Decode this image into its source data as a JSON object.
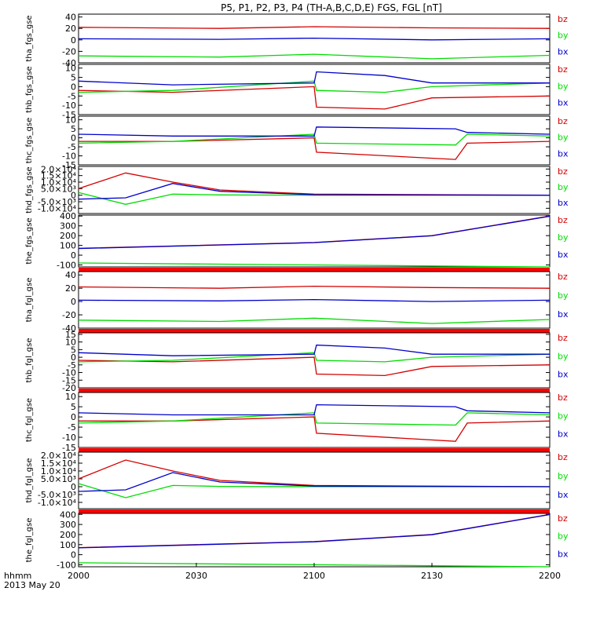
{
  "title": "P5, P1, P2, P3, P4 (TH-A,B,C,D,E) FGS, FGL [nT]",
  "footer": {
    "time_label": "hhmm",
    "date_label": "2013 May 20"
  },
  "colors": {
    "bz": "#d40000",
    "by": "#00dd00",
    "bx": "#0000cc",
    "separator": "#ff0000"
  },
  "chart_data": [
    {
      "type": "line",
      "ylabel": "tha_fgs_gse",
      "ylim": [
        -40,
        45
      ],
      "yticks": [
        "40",
        "20",
        "0",
        "-20",
        "-40"
      ],
      "series": [
        {
          "name": "bz",
          "x": [
            0,
            60,
            100,
            150,
            200
          ],
          "values": [
            22,
            20,
            23,
            21,
            20
          ]
        },
        {
          "name": "by",
          "x": [
            0,
            60,
            100,
            150,
            200
          ],
          "values": [
            -28,
            -30,
            -25,
            -33,
            -27
          ]
        },
        {
          "name": "bx",
          "x": [
            0,
            60,
            100,
            150,
            200
          ],
          "values": [
            2,
            1,
            3,
            0,
            2
          ]
        }
      ]
    },
    {
      "type": "line",
      "ylabel": "thb_fgs_gse",
      "ylim": [
        -15,
        12
      ],
      "yticks": [
        "10",
        "5",
        "0",
        "-5",
        "-10",
        "-15"
      ],
      "series": [
        {
          "name": "bz",
          "x": [
            0,
            40,
            100,
            101,
            130,
            150,
            200
          ],
          "values": [
            -2,
            -3,
            0,
            -11,
            -12,
            -6,
            -5
          ]
        },
        {
          "name": "by",
          "x": [
            0,
            40,
            100,
            101,
            130,
            150,
            200
          ],
          "values": [
            -3,
            -2,
            3,
            -2,
            -3,
            0,
            2
          ]
        },
        {
          "name": "bx",
          "x": [
            0,
            40,
            100,
            101,
            130,
            150,
            200
          ],
          "values": [
            3,
            1,
            2,
            8,
            6,
            2,
            2
          ]
        }
      ]
    },
    {
      "type": "line",
      "ylabel": "thc_fgs_gse",
      "ylim": [
        -15,
        12
      ],
      "yticks": [
        "10",
        "5",
        "0",
        "-5",
        "-10",
        "-15"
      ],
      "series": [
        {
          "name": "bz",
          "x": [
            0,
            40,
            100,
            101,
            160,
            165,
            200
          ],
          "values": [
            -2,
            -2,
            0,
            -8,
            -12,
            -3,
            -2
          ]
        },
        {
          "name": "by",
          "x": [
            0,
            40,
            100,
            101,
            160,
            165,
            200
          ],
          "values": [
            -3,
            -2,
            2,
            -3,
            -4,
            2,
            1
          ]
        },
        {
          "name": "bx",
          "x": [
            0,
            40,
            100,
            101,
            160,
            165,
            200
          ],
          "values": [
            2,
            1,
            1,
            6,
            5,
            3,
            2
          ]
        }
      ]
    },
    {
      "type": "line",
      "ylabel": "thd_fgs_gse",
      "ylim": [
        -14000,
        22000
      ],
      "yticks": [
        "2.0×10⁴",
        "1.5×10⁴",
        "1.0×10⁴",
        "5.0×10³",
        "0",
        "-5.0×10³",
        "-1.0×10⁴"
      ],
      "series": [
        {
          "name": "bz",
          "x": [
            0,
            20,
            40,
            60,
            100,
            200
          ],
          "values": [
            5000,
            17000,
            10000,
            4000,
            800,
            0
          ]
        },
        {
          "name": "by",
          "x": [
            0,
            20,
            40,
            60,
            100,
            200
          ],
          "values": [
            2000,
            -7000,
            800,
            200,
            0,
            0
          ]
        },
        {
          "name": "bx",
          "x": [
            0,
            20,
            40,
            60,
            100,
            200
          ],
          "values": [
            -3000,
            -2000,
            9000,
            3000,
            400,
            0
          ]
        }
      ]
    },
    {
      "type": "line",
      "ylabel": "the_fgs_gse",
      "ylim": [
        -120,
        410
      ],
      "yticks": [
        "400",
        "300",
        "200",
        "100",
        "0",
        "-100"
      ],
      "series": [
        {
          "name": "bz",
          "x": [
            0,
            100,
            150,
            200
          ],
          "values": [
            70,
            130,
            200,
            400
          ]
        },
        {
          "name": "by",
          "x": [
            0,
            100,
            150,
            200
          ],
          "values": [
            -80,
            -100,
            -110,
            -120
          ]
        },
        {
          "name": "bx",
          "x": [
            0,
            100,
            150,
            200
          ],
          "values": [
            68,
            128,
            198,
            398
          ]
        }
      ]
    },
    {
      "type": "line",
      "ylabel": "tha_fgl_gse",
      "ylim": [
        -40,
        45
      ],
      "yticks": [
        "40",
        "20",
        "0",
        "-20",
        "-40"
      ],
      "series": [
        {
          "name": "bz",
          "x": [
            0,
            60,
            100,
            150,
            200
          ],
          "values": [
            22,
            20,
            23,
            21,
            20
          ]
        },
        {
          "name": "by",
          "x": [
            0,
            60,
            100,
            150,
            200
          ],
          "values": [
            -28,
            -30,
            -25,
            -33,
            -27
          ]
        },
        {
          "name": "bx",
          "x": [
            0,
            60,
            100,
            150,
            200
          ],
          "values": [
            2,
            1,
            3,
            0,
            2
          ]
        }
      ]
    },
    {
      "type": "line",
      "ylabel": "thb_fgl_gse",
      "ylim": [
        -20,
        16
      ],
      "yticks": [
        "15",
        "10",
        "5",
        "0",
        "-5",
        "-10",
        "-15",
        "-20"
      ],
      "series": [
        {
          "name": "bz",
          "x": [
            0,
            40,
            100,
            101,
            130,
            150,
            200
          ],
          "values": [
            -2,
            -3,
            0,
            -11,
            -12,
            -6,
            -5
          ]
        },
        {
          "name": "by",
          "x": [
            0,
            40,
            100,
            101,
            130,
            150,
            200
          ],
          "values": [
            -3,
            -2,
            3,
            -2,
            -3,
            0,
            2
          ]
        },
        {
          "name": "bx",
          "x": [
            0,
            40,
            100,
            101,
            130,
            150,
            200
          ],
          "values": [
            3,
            1,
            2,
            8,
            6,
            2,
            2
          ]
        }
      ]
    },
    {
      "type": "line",
      "ylabel": "thc_fgl_gse",
      "ylim": [
        -15,
        12
      ],
      "yticks": [
        "10",
        "5",
        "0",
        "-5",
        "-10",
        "-15"
      ],
      "series": [
        {
          "name": "bz",
          "x": [
            0,
            40,
            100,
            101,
            160,
            165,
            200
          ],
          "values": [
            -2,
            -2,
            0,
            -8,
            -12,
            -3,
            -2
          ]
        },
        {
          "name": "by",
          "x": [
            0,
            40,
            100,
            101,
            160,
            165,
            200
          ],
          "values": [
            -3,
            -2,
            2,
            -3,
            -4,
            2,
            1
          ]
        },
        {
          "name": "bx",
          "x": [
            0,
            40,
            100,
            101,
            160,
            165,
            200
          ],
          "values": [
            2,
            1,
            1,
            6,
            5,
            3,
            2
          ]
        }
      ]
    },
    {
      "type": "line",
      "ylabel": "thd_fgl_gse",
      "ylim": [
        -14000,
        22000
      ],
      "yticks": [
        "2.0×10⁴",
        "1.5×10⁴",
        "1.0×10⁴",
        "5.0×10³",
        "0",
        "-5.0×10³",
        "-1.0×10⁴"
      ],
      "series": [
        {
          "name": "bz",
          "x": [
            0,
            20,
            40,
            60,
            100,
            200
          ],
          "values": [
            5000,
            17000,
            10000,
            4000,
            800,
            0
          ]
        },
        {
          "name": "by",
          "x": [
            0,
            20,
            40,
            60,
            100,
            200
          ],
          "values": [
            2000,
            -7000,
            800,
            200,
            0,
            0
          ]
        },
        {
          "name": "bx",
          "x": [
            0,
            20,
            40,
            60,
            100,
            200
          ],
          "values": [
            -3000,
            -2000,
            9000,
            3000,
            400,
            0
          ]
        }
      ]
    },
    {
      "type": "line",
      "ylabel": "the_fgl_gse",
      "ylim": [
        -120,
        410
      ],
      "yticks": [
        "400",
        "300",
        "200",
        "100",
        "0",
        "-100"
      ],
      "series": [
        {
          "name": "bz",
          "x": [
            0,
            100,
            150,
            200
          ],
          "values": [
            70,
            130,
            200,
            400
          ]
        },
        {
          "name": "by",
          "x": [
            0,
            100,
            150,
            200
          ],
          "values": [
            -80,
            -100,
            -110,
            -120
          ]
        },
        {
          "name": "bx",
          "x": [
            0,
            100,
            150,
            200
          ],
          "values": [
            68,
            128,
            198,
            398
          ]
        }
      ]
    }
  ],
  "xaxis": {
    "labels": [
      "2000",
      "2030",
      "2100",
      "2130",
      "2200"
    ]
  }
}
